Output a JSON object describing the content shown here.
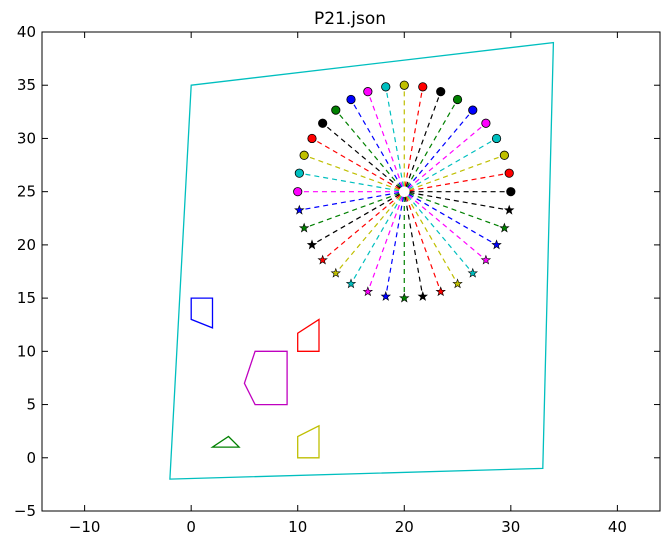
{
  "chart_data": {
    "type": "scatter",
    "title": "P21.json",
    "xlabel": "",
    "ylabel": "",
    "xlim": [
      -14,
      44
    ],
    "ylim": [
      -5,
      40
    ],
    "xticks": [
      -10,
      0,
      10,
      20,
      30,
      40
    ],
    "yticks": [
      -5,
      0,
      5,
      10,
      15,
      20,
      25,
      30,
      35,
      40
    ],
    "grid": false,
    "center": [
      20,
      25
    ],
    "ray_inner_radius": 0.5,
    "ray_outer_radius": 10,
    "ray_count": 36,
    "ray_colors": [
      "#000000",
      "#ff0000",
      "#bfbf00",
      "#00bfbf",
      "#ff00ff",
      "#0000ff",
      "#008000"
    ],
    "upper_markers": {
      "shape": "circle",
      "count": 19
    },
    "lower_markers": {
      "shape": "star",
      "count": 17
    },
    "boundary": {
      "color": "#00bfbf",
      "points": [
        [
          0,
          35
        ],
        [
          34,
          39
        ],
        [
          33,
          -1
        ],
        [
          -2,
          -2
        ]
      ]
    },
    "obstacles": [
      {
        "color": "#0000ff",
        "points": [
          [
            0,
            15
          ],
          [
            2,
            15
          ],
          [
            2,
            12.2
          ],
          [
            0,
            13
          ]
        ]
      },
      {
        "color": "#ff0000",
        "points": [
          [
            10,
            10
          ],
          [
            12,
            10
          ],
          [
            12,
            13
          ],
          [
            10,
            11.7
          ]
        ]
      },
      {
        "color": "#bf00bf",
        "points": [
          [
            6,
            10
          ],
          [
            9,
            10
          ],
          [
            9,
            5
          ],
          [
            6,
            5
          ],
          [
            5,
            7
          ]
        ]
      },
      {
        "color": "#008000",
        "points": [
          [
            2,
            1
          ],
          [
            4.5,
            1
          ],
          [
            3.5,
            2
          ]
        ]
      },
      {
        "color": "#bfbf00",
        "points": [
          [
            10,
            0
          ],
          [
            12,
            0
          ],
          [
            12,
            3
          ],
          [
            10,
            2
          ]
        ]
      }
    ]
  }
}
